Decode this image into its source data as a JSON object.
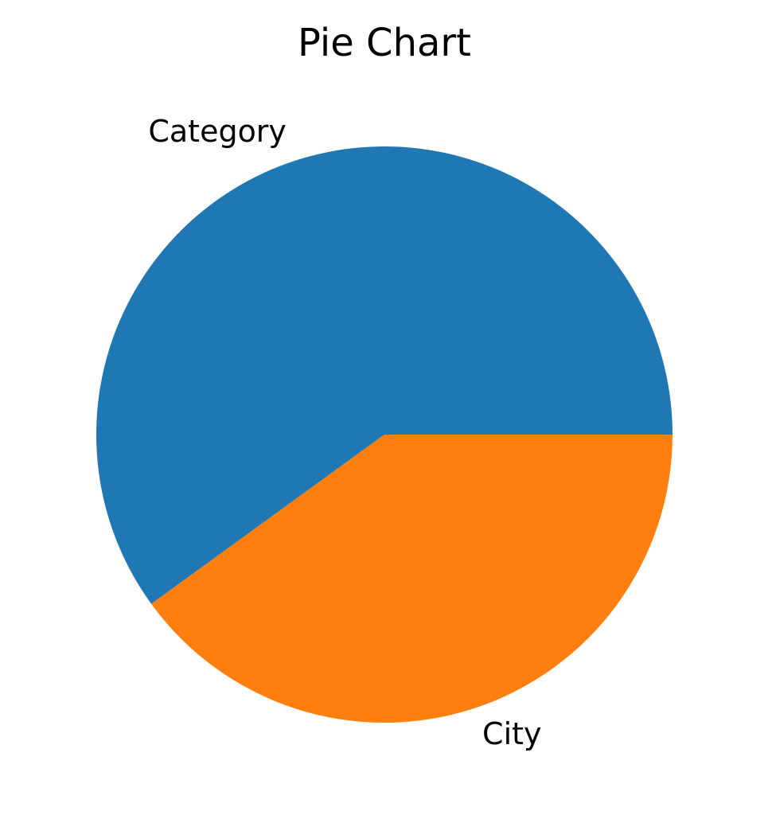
{
  "chart_data": {
    "type": "pie",
    "title": "Pie Chart",
    "labels": [
      "Category",
      "City"
    ],
    "values": [
      60,
      40
    ],
    "colors": [
      "#1f77b4",
      "#ff7f0e"
    ],
    "start_angle_deg": 0,
    "direction": "counterclockwise",
    "legend": "none"
  }
}
